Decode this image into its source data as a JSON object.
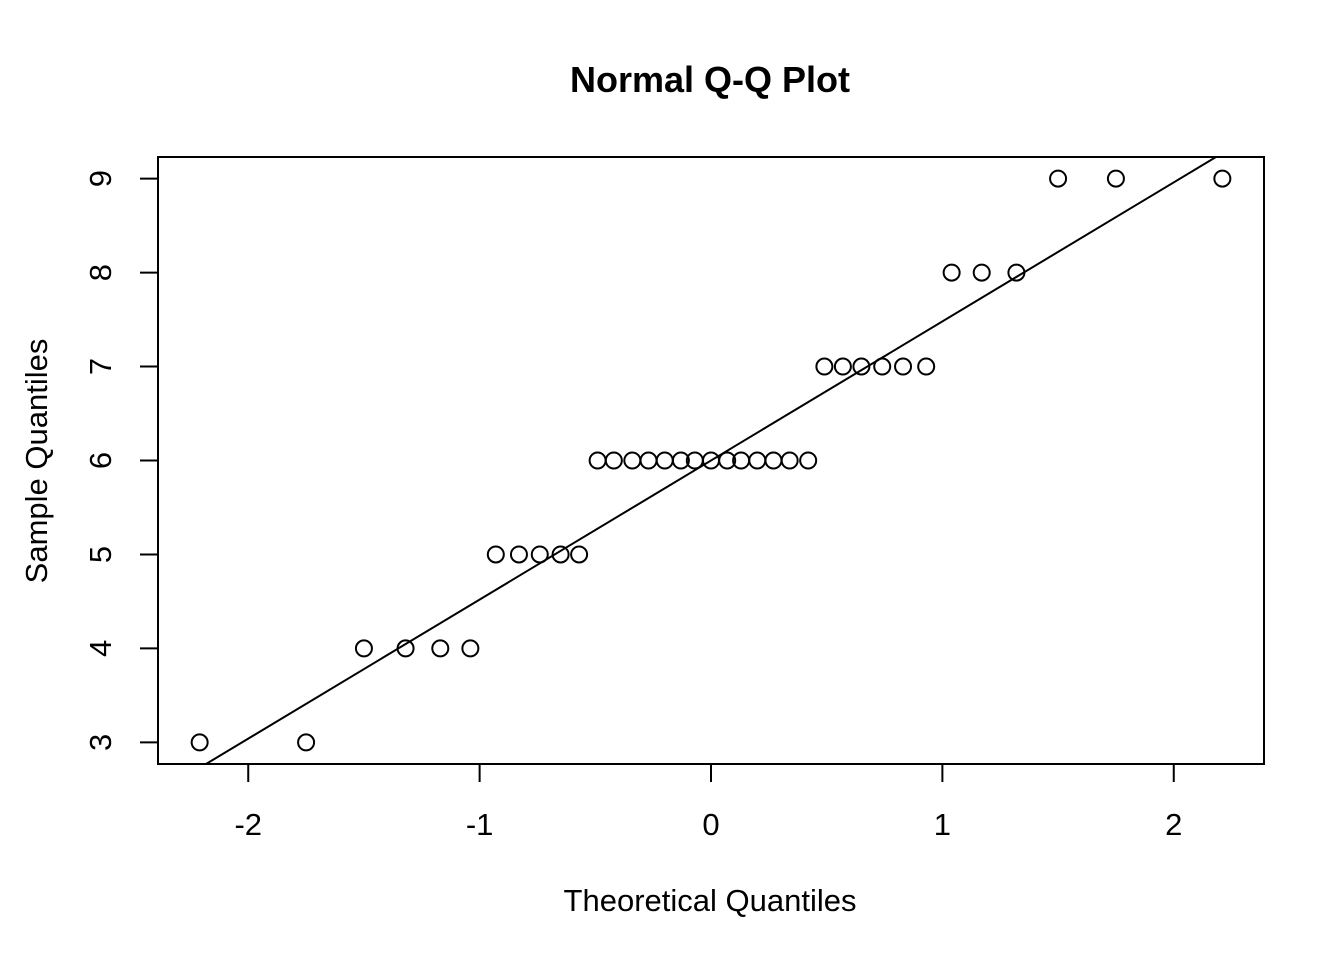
{
  "chart_data": {
    "type": "scatter",
    "title": "Normal Q-Q Plot",
    "xlabel": "Theoretical Quantiles",
    "ylabel": "Sample Quantiles",
    "xlim": [
      -2.39,
      2.39
    ],
    "ylim": [
      2.77,
      9.23
    ],
    "x_ticks": [
      -2,
      -1,
      0,
      1,
      2
    ],
    "x_tick_labels": [
      "-2",
      "-1",
      "0",
      "1",
      "2"
    ],
    "y_ticks": [
      3,
      4,
      5,
      6,
      7,
      8,
      9
    ],
    "y_tick_labels": [
      "3",
      "4",
      "5",
      "6",
      "7",
      "8",
      "9"
    ],
    "grid": false,
    "marker": "open-circle",
    "points": [
      {
        "x": -2.21,
        "y": 3
      },
      {
        "x": -1.75,
        "y": 3
      },
      {
        "x": -1.5,
        "y": 4
      },
      {
        "x": -1.32,
        "y": 4
      },
      {
        "x": -1.17,
        "y": 4
      },
      {
        "x": -1.04,
        "y": 4
      },
      {
        "x": -0.93,
        "y": 5
      },
      {
        "x": -0.83,
        "y": 5
      },
      {
        "x": -0.74,
        "y": 5
      },
      {
        "x": -0.65,
        "y": 5
      },
      {
        "x": -0.57,
        "y": 5
      },
      {
        "x": -0.49,
        "y": 6
      },
      {
        "x": -0.42,
        "y": 6
      },
      {
        "x": -0.34,
        "y": 6
      },
      {
        "x": -0.27,
        "y": 6
      },
      {
        "x": -0.2,
        "y": 6
      },
      {
        "x": -0.13,
        "y": 6
      },
      {
        "x": -0.07,
        "y": 6
      },
      {
        "x": 0.0,
        "y": 6
      },
      {
        "x": 0.07,
        "y": 6
      },
      {
        "x": 0.13,
        "y": 6
      },
      {
        "x": 0.2,
        "y": 6
      },
      {
        "x": 0.27,
        "y": 6
      },
      {
        "x": 0.34,
        "y": 6
      },
      {
        "x": 0.42,
        "y": 6
      },
      {
        "x": 0.49,
        "y": 7
      },
      {
        "x": 0.57,
        "y": 7
      },
      {
        "x": 0.65,
        "y": 7
      },
      {
        "x": 0.74,
        "y": 7
      },
      {
        "x": 0.83,
        "y": 7
      },
      {
        "x": 0.93,
        "y": 7
      },
      {
        "x": 1.04,
        "y": 8
      },
      {
        "x": 1.17,
        "y": 8
      },
      {
        "x": 1.32,
        "y": 8
      },
      {
        "x": 1.5,
        "y": 9
      },
      {
        "x": 1.75,
        "y": 9
      },
      {
        "x": 2.21,
        "y": 9
      }
    ],
    "reference_line": {
      "intercept": 6.0,
      "slope": 1.48
    }
  }
}
